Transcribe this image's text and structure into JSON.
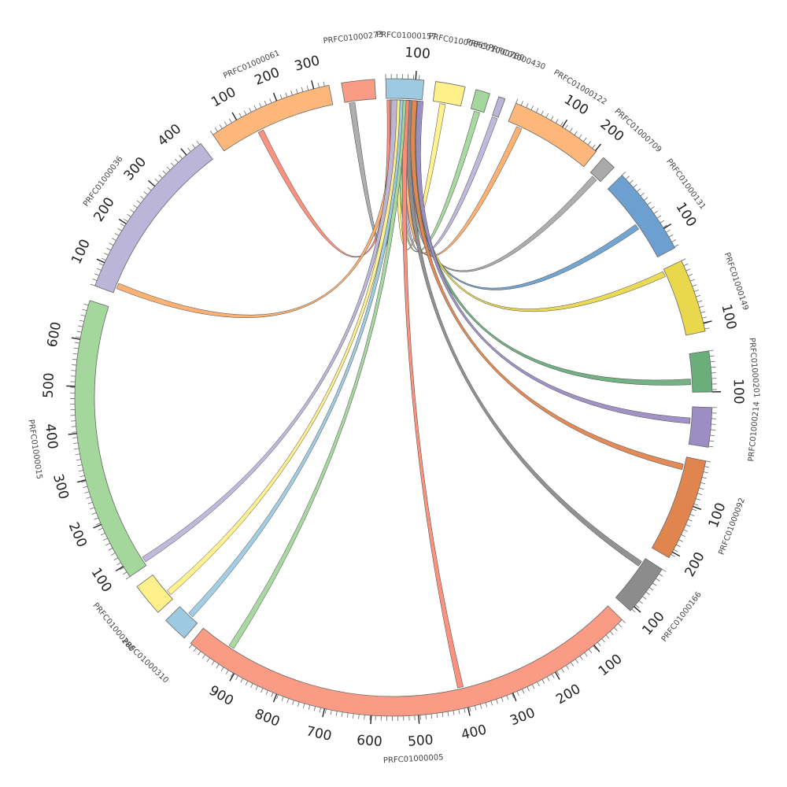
{
  "segments": [
    {
      "name": "PRFC01000157",
      "color": "#9ECAE1",
      "start_deg": 358.6,
      "end_deg": 5.5,
      "ticks": [
        {
          "label": "100",
          "deg": 4.0
        }
      ]
    },
    {
      "name": "PRFC01000869",
      "color": "#FFF08A",
      "start_deg": 7.6,
      "end_deg": 13.0,
      "ticks": []
    },
    {
      "name": "PRFC01000780",
      "color": "#A3D79B",
      "start_deg": 15.0,
      "end_deg": 17.6,
      "ticks": []
    },
    {
      "name": "PRFC01000430",
      "color": "#BCB5DA",
      "start_deg": 19.3,
      "end_deg": 20.5,
      "ticks": []
    },
    {
      "name": "PRFC01000122",
      "color": "#FDB77A",
      "start_deg": 22.6,
      "end_deg": 39.5,
      "ticks": [
        {
          "label": "100",
          "deg": 32.0
        },
        {
          "label": "200",
          "deg": 39.3
        }
      ]
    },
    {
      "name": "PRFC01000709",
      "color": "#AAAAAA",
      "start_deg": 41.2,
      "end_deg": 43.8,
      "ticks": []
    },
    {
      "name": "PRFC01000131",
      "color": "#6BA0D0",
      "start_deg": 45.8,
      "end_deg": 62.0,
      "ticks": [
        {
          "label": "100",
          "deg": 58.0
        }
      ]
    },
    {
      "name": "PRFC01000149",
      "color": "#EAD84C",
      "start_deg": 64.6,
      "end_deg": 78.0,
      "ticks": [
        {
          "label": "100",
          "deg": 76.5
        }
      ]
    },
    {
      "name": "PRFC01000201",
      "color": "#6AAE7C",
      "start_deg": 81.6,
      "end_deg": 89.0,
      "ticks": [
        {
          "label": "100",
          "deg": 89.0
        }
      ]
    },
    {
      "name": "PRFC01000214",
      "color": "#9C8DC4",
      "start_deg": 91.8,
      "end_deg": 99.0,
      "ticks": []
    },
    {
      "name": "PRFC01000092",
      "color": "#E1854F",
      "start_deg": 101.5,
      "end_deg": 120.2,
      "ticks": [
        {
          "label": "100",
          "deg": 110.0
        },
        {
          "label": "200",
          "deg": 119.0
        }
      ]
    },
    {
      "name": "PRFC01000166",
      "color": "#8C8C8C",
      "start_deg": 122.6,
      "end_deg": 132.0,
      "ticks": [
        {
          "label": "100",
          "deg": 131.0
        }
      ]
    },
    {
      "name": "PRFC01000005",
      "color": "#FA9B85",
      "start_deg": 134.2,
      "end_deg": 219.5,
      "ticks": [
        {
          "label": "100",
          "deg": 141.0
        },
        {
          "label": "200",
          "deg": 149.5
        },
        {
          "label": "300",
          "deg": 158.0
        },
        {
          "label": "400",
          "deg": 166.5
        },
        {
          "label": "500",
          "deg": 175.5
        },
        {
          "label": "600",
          "deg": 184.0
        },
        {
          "label": "700",
          "deg": 192.5
        },
        {
          "label": "800",
          "deg": 201.5
        },
        {
          "label": "900",
          "deg": 210.0
        }
      ]
    },
    {
      "name": "PRFC01000310",
      "color": "#9ECAE1",
      "start_deg": 221.0,
      "end_deg": 225.6,
      "ticks": []
    },
    {
      "name": "PRFC01000280",
      "color": "#FFF08A",
      "start_deg": 227.6,
      "end_deg": 233.6,
      "ticks": []
    },
    {
      "name": "PRFC01000015",
      "color": "#A3D79B",
      "start_deg": 235.8,
      "end_deg": 287.7,
      "ticks": [
        {
          "label": "100",
          "deg": 238.0
        },
        {
          "label": "200",
          "deg": 246.5
        },
        {
          "label": "300",
          "deg": 255.0
        },
        {
          "label": "400",
          "deg": 263.5
        },
        {
          "label": "500",
          "deg": 272.0
        },
        {
          "label": "600",
          "deg": 280.5
        }
      ]
    },
    {
      "name": "PRFC01000036",
      "color": "#BCB5DA",
      "start_deg": 290.5,
      "end_deg": 322.8,
      "ticks": [
        {
          "label": "100",
          "deg": 295.0
        },
        {
          "label": "200",
          "deg": 303.0
        },
        {
          "label": "300",
          "deg": 311.5
        },
        {
          "label": "400",
          "deg": 319.5
        }
      ]
    },
    {
      "name": "PRFC01000061",
      "color": "#FDB77A",
      "start_deg": 325.5,
      "end_deg": 348.3,
      "ticks": [
        {
          "label": "100",
          "deg": 330.5
        },
        {
          "label": "200",
          "deg": 338.5
        },
        {
          "label": "300",
          "deg": 345.5
        }
      ]
    },
    {
      "name": "PRFC01000273",
      "color": "#FA9B85",
      "start_deg": 350.6,
      "end_deg": 356.6,
      "ticks": []
    }
  ],
  "links": [
    {
      "from": "PRFC01000157",
      "a": 359.3,
      "to": "PRFC01000061",
      "b": 333.5,
      "color": "#FA8C78"
    },
    {
      "from": "PRFC01000157",
      "a": 359.8,
      "to": "PRFC01000273",
      "b": 352.0,
      "color": "#AAAAAA"
    },
    {
      "from": "PRFC01000157",
      "a": 0.4,
      "to": "PRFC01000036",
      "b": 292.0,
      "color": "#FDAE6B"
    },
    {
      "from": "PRFC01000157",
      "a": 1.0,
      "to": "PRFC01000869",
      "b": 9.5,
      "color": "#FFF08A"
    },
    {
      "from": "PRFC01000157",
      "a": 1.6,
      "to": "PRFC01000780",
      "b": 16.3,
      "color": "#A3D79B"
    },
    {
      "from": "PRFC01000157",
      "a": 2.2,
      "to": "PRFC01000430",
      "b": 19.9,
      "color": "#BCB5DA"
    },
    {
      "from": "PRFC01000157",
      "a": 2.8,
      "to": "PRFC01000122",
      "b": 25.0,
      "color": "#FDAE6B"
    },
    {
      "from": "PRFC01000157",
      "a": 3.3,
      "to": "PRFC01000709",
      "b": 42.5,
      "color": "#AAAAAA"
    },
    {
      "from": "PRFC01000157",
      "a": 3.8,
      "to": "PRFC01000131",
      "b": 55.0,
      "color": "#6BA0D0"
    },
    {
      "from": "PRFC01000157",
      "a": 4.3,
      "to": "PRFC01000149",
      "b": 65.5,
      "color": "#EAD84C"
    },
    {
      "from": "PRFC01000157",
      "a": 4.8,
      "to": "PRFC01000201",
      "b": 87.0,
      "color": "#6AAE7C"
    },
    {
      "from": "PRFC01000157",
      "a": 5.2,
      "to": "PRFC01000214",
      "b": 94.5,
      "color": "#9C8DC4"
    },
    {
      "from": "PRFC01000157",
      "a": 4.0,
      "to": "PRFC01000092",
      "b": 103.5,
      "color": "#E1854F"
    },
    {
      "from": "PRFC01000157",
      "a": 3.0,
      "to": "PRFC01000166",
      "b": 124.0,
      "color": "#8C8C8C"
    },
    {
      "from": "PRFC01000157",
      "a": 2.5,
      "to": "PRFC01000005",
      "b": 167.0,
      "color": "#FA8C78"
    },
    {
      "from": "PRFC01000157",
      "a": 1.9,
      "to": "PRFC01000005",
      "b": 213.0,
      "color": "#A3D79B"
    },
    {
      "from": "PRFC01000157",
      "a": 1.3,
      "to": "PRFC01000310",
      "b": 223.0,
      "color": "#9ECAE1"
    },
    {
      "from": "PRFC01000157",
      "a": 0.7,
      "to": "PRFC01000280",
      "b": 229.0,
      "color": "#FFF08A"
    },
    {
      "from": "PRFC01000157",
      "a": 0.1,
      "to": "PRFC01000015",
      "b": 237.0,
      "color": "#BCB5DA"
    }
  ]
}
